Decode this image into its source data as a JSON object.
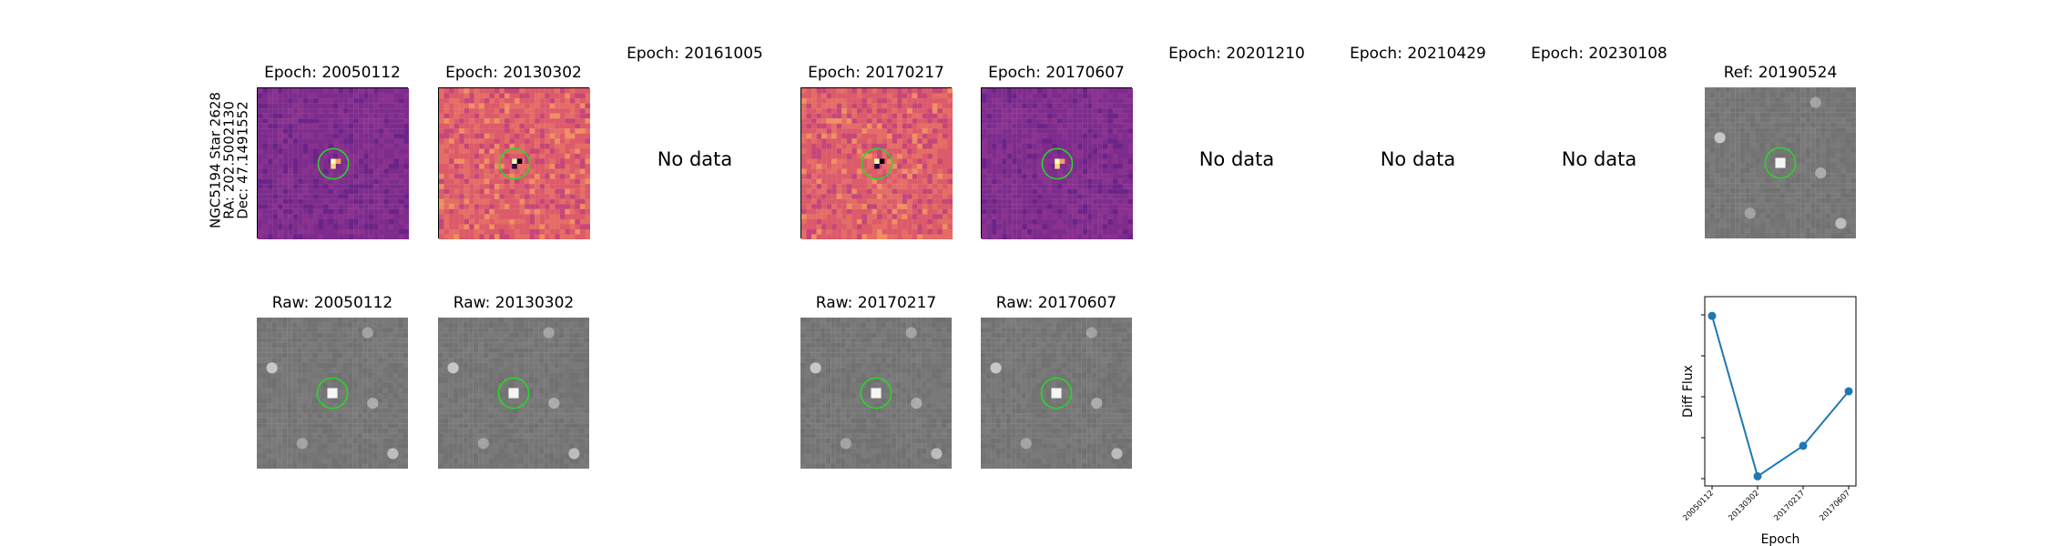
{
  "figure": {
    "star_label": [
      "NGC5194 Star 2628",
      "RA: 202.5002130",
      "Dec: 47.1491552"
    ],
    "diff_row": [
      {
        "title": "Epoch: 20050112",
        "has_data": true,
        "stamp": "diff-magma"
      },
      {
        "title": "Epoch: 20130302",
        "has_data": true,
        "stamp": "diff-bright"
      },
      {
        "title": "Epoch: 20161005",
        "has_data": false,
        "no_data_text": "No data"
      },
      {
        "title": "Epoch: 20170217",
        "has_data": true,
        "stamp": "diff-bright"
      },
      {
        "title": "Epoch: 20170607",
        "has_data": true,
        "stamp": "diff-magma"
      },
      {
        "title": "Epoch: 20201210",
        "has_data": false,
        "no_data_text": "No data"
      },
      {
        "title": "Epoch: 20210429",
        "has_data": false,
        "no_data_text": "No data"
      },
      {
        "title": "Epoch: 20230108",
        "has_data": false,
        "no_data_text": "No data"
      },
      {
        "title": "Ref: 20190524",
        "has_data": true,
        "stamp": "grayscale-reference"
      }
    ],
    "raw_row": [
      {
        "title": "Raw: 20050112",
        "col": 0
      },
      {
        "title": "Raw: 20130302",
        "col": 1
      },
      {
        "title": "Raw: 20170217",
        "col": 3
      },
      {
        "title": "Raw: 20170607",
        "col": 4
      }
    ],
    "marker_color": "#22dd22",
    "magma_colors": [
      "#7a2a8e",
      "#d5506e",
      "#fcfdbf",
      "#000004"
    ],
    "gray_color": "#767676"
  },
  "chart_data": {
    "type": "line",
    "title": "",
    "xlabel": "Epoch",
    "ylabel": "Diff Flux",
    "categories": [
      "20050112",
      "20130302",
      "20170217",
      "20170607"
    ],
    "series": [
      {
        "values": [
          1.0,
          0.0,
          0.19,
          0.53
        ],
        "color": "#1f77b4"
      }
    ],
    "ylim": [
      -0.06,
      1.12
    ],
    "ytick_labels_shown": false,
    "grid": false,
    "legend": "none"
  }
}
